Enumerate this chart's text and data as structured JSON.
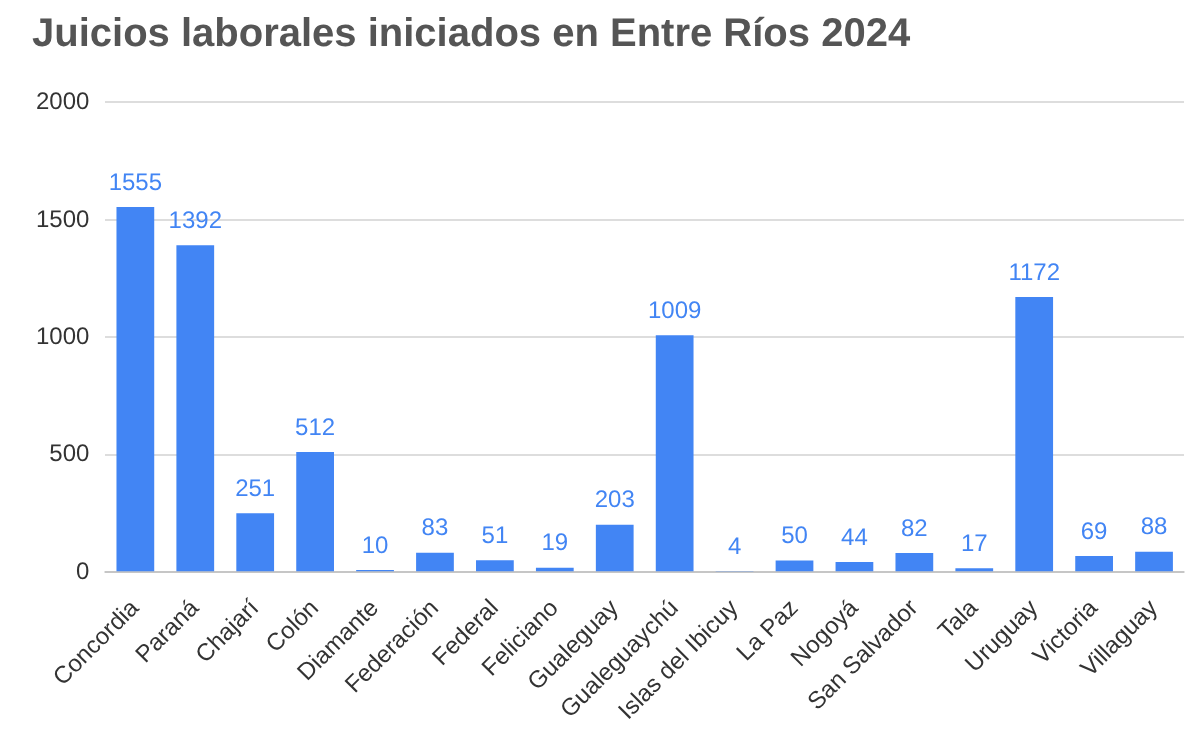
{
  "chart_data": {
    "type": "bar",
    "title": "Juicios laborales iniciados en Entre Ríos 2024",
    "categories": [
      "Concordia",
      "Paraná",
      "Chajarí",
      "Colón",
      "Diamante",
      "Federación",
      "Federal",
      "Feliciano",
      "Gualeguay",
      "Gualeguaychú",
      "Islas del Ibicuy",
      "La Paz",
      "Nogoyá",
      "San Salvador",
      "Tala",
      "Uruguay",
      "Victoria",
      "Villaguay"
    ],
    "values": [
      1555,
      1392,
      251,
      512,
      10,
      83,
      51,
      19,
      203,
      1009,
      4,
      50,
      44,
      82,
      17,
      1172,
      69,
      88
    ],
    "color": "#4285f4",
    "ylim": [
      0,
      2000
    ],
    "yticks": [
      0,
      500,
      1000,
      1500,
      2000
    ],
    "grid": "y",
    "data_labels": true
  }
}
